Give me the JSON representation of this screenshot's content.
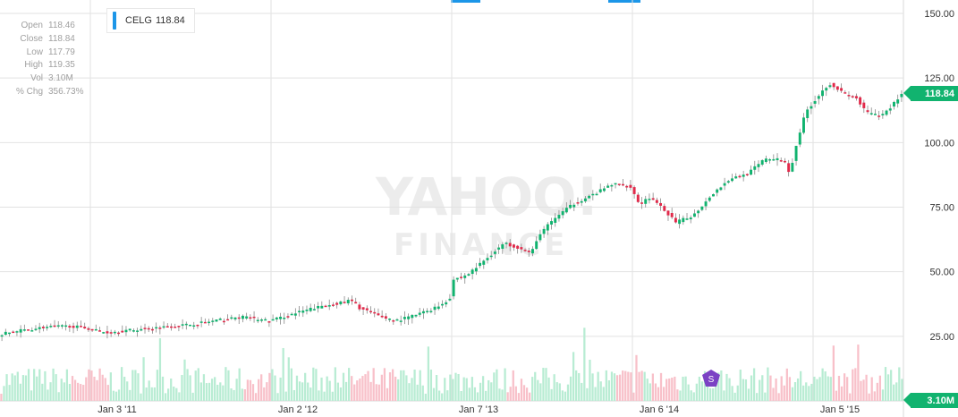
{
  "legend": {
    "symbol": "CELG",
    "value": "118.84",
    "color": "#1c96e8"
  },
  "stats": [
    {
      "label": "Open",
      "value": "118.46"
    },
    {
      "label": "Close",
      "value": "118.84"
    },
    {
      "label": "Low",
      "value": "117.79"
    },
    {
      "label": "High",
      "value": "119.35"
    },
    {
      "label": "Vol",
      "value": "3.10M"
    },
    {
      "label": "% Chg",
      "value": "356.73%"
    }
  ],
  "price_tag": "118.84",
  "volume_tag": "3.10M",
  "watermark": {
    "line1": "YAHOO!",
    "line2": "FINANCE"
  },
  "event_marker": {
    "label": "S"
  },
  "colors": {
    "up": "#11b36f",
    "down": "#e2294a",
    "up_volume": "#b8ecd3",
    "down_volume": "#f8c0c9",
    "grid": "#e2e2e2",
    "accent": "#1c96e8"
  },
  "chart_data": {
    "type": "candlestick",
    "symbol": "CELG",
    "y_axis": {
      "min": 0,
      "max": 150,
      "ticks": [
        "150.00",
        "125.00",
        "100.00",
        "75.00",
        "50.00",
        "25.00"
      ],
      "tick_values": [
        150,
        125,
        100,
        75,
        50,
        25
      ],
      "position": "right"
    },
    "x_axis": {
      "ticks": [
        "Jan 3 '11",
        "Jan 2 '12",
        "Jan 7 '13",
        "Jan 6 '14",
        "Jan 5 '15"
      ],
      "tick_years": [
        2011.0,
        2012.0,
        2013.0,
        2014.0,
        2015.0
      ],
      "range": [
        2010.5,
        2015.5
      ]
    },
    "grid": true,
    "price_path": [
      [
        2010.5,
        25.5
      ],
      [
        2010.6,
        27
      ],
      [
        2010.75,
        28.5
      ],
      [
        2010.9,
        29
      ],
      [
        2011.0,
        28
      ],
      [
        2011.1,
        26.5
      ],
      [
        2011.25,
        27.5
      ],
      [
        2011.4,
        28.5
      ],
      [
        2011.55,
        29.5
      ],
      [
        2011.7,
        31
      ],
      [
        2011.85,
        32.5
      ],
      [
        2012.0,
        31
      ],
      [
        2012.1,
        33
      ],
      [
        2012.25,
        36
      ],
      [
        2012.4,
        38
      ],
      [
        2012.45,
        39
      ],
      [
        2012.5,
        36
      ],
      [
        2012.6,
        33
      ],
      [
        2012.7,
        31
      ],
      [
        2012.8,
        33
      ],
      [
        2012.9,
        35.5
      ],
      [
        2012.97,
        38
      ],
      [
        2013.0,
        40
      ],
      [
        2013.02,
        47
      ],
      [
        2013.1,
        49
      ],
      [
        2013.2,
        55
      ],
      [
        2013.3,
        61
      ],
      [
        2013.4,
        59
      ],
      [
        2013.45,
        57
      ],
      [
        2013.5,
        65
      ],
      [
        2013.6,
        72
      ],
      [
        2013.7,
        77
      ],
      [
        2013.8,
        80
      ],
      [
        2013.9,
        84
      ],
      [
        2014.0,
        83
      ],
      [
        2014.05,
        76
      ],
      [
        2014.1,
        79
      ],
      [
        2014.2,
        73
      ],
      [
        2014.25,
        69
      ],
      [
        2014.35,
        72
      ],
      [
        2014.45,
        80
      ],
      [
        2014.55,
        86
      ],
      [
        2014.65,
        88
      ],
      [
        2014.75,
        94
      ],
      [
        2014.85,
        93
      ],
      [
        2014.88,
        88
      ],
      [
        2014.92,
        100
      ],
      [
        2014.97,
        112
      ],
      [
        2015.05,
        119
      ],
      [
        2015.1,
        123
      ],
      [
        2015.18,
        119
      ],
      [
        2015.25,
        117
      ],
      [
        2015.3,
        112
      ],
      [
        2015.38,
        110
      ],
      [
        2015.43,
        113
      ],
      [
        2015.5,
        118.84
      ]
    ],
    "volume_max_millions": 20,
    "last_volume_millions": 3.1
  }
}
